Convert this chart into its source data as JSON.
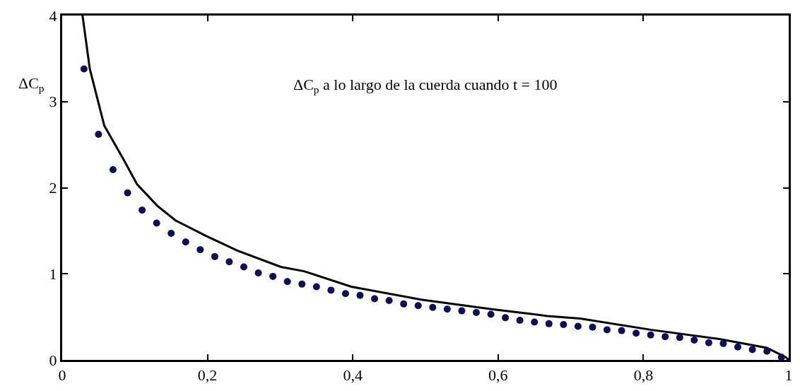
{
  "chart_data": {
    "type": "scatter",
    "ylabel": "ΔC$_{p}$",
    "annotations": [
      "ΔC$_{p}$ a lo largo de la cuerda cuando t = 100"
    ],
    "xlim": [
      0,
      1
    ],
    "xticks": [
      0,
      {
        "value": 0.2,
        "label": "0,2"
      },
      {
        "value": 0.4,
        "label": "0,4"
      },
      {
        "value": 0.6,
        "label": "0,6"
      },
      {
        "value": 0.8,
        "label": "0,8"
      },
      1
    ],
    "ylim": [
      0,
      4
    ],
    "yticks": [
      0,
      1,
      2,
      3,
      4
    ],
    "series": [
      {
        "type": "line",
        "color": "#000000",
        "line_style": "solid",
        "marker": "none",
        "x": [
          0.028,
          0.038,
          0.058,
          0.085,
          0.103,
          0.131,
          0.156,
          0.198,
          0.241,
          0.301,
          0.333,
          0.398,
          0.494,
          0.591,
          0.668,
          0.713,
          0.81,
          0.906,
          0.97,
          0.996,
          1.0
        ],
        "values": [
          4,
          3.38,
          2.72,
          2.32,
          2.04,
          1.79,
          1.62,
          1.44,
          1.27,
          1.08,
          1.03,
          0.85,
          0.7,
          0.59,
          0.51,
          0.48,
          0.35,
          0.24,
          0.14,
          0.03,
          0
        ]
      },
      {
        "color": "#0a0f5a",
        "marker": "circle",
        "x": [
          0.03,
          0.05,
          0.07,
          0.09,
          0.11,
          0.13,
          0.15,
          0.17,
          0.19,
          0.21,
          0.23,
          0.25,
          0.27,
          0.29,
          0.31,
          0.33,
          0.35,
          0.37,
          0.39,
          0.41,
          0.43,
          0.45,
          0.47,
          0.49,
          0.51,
          0.53,
          0.55,
          0.57,
          0.59,
          0.61,
          0.63,
          0.65,
          0.67,
          0.69,
          0.71,
          0.73,
          0.75,
          0.77,
          0.79,
          0.81,
          0.83,
          0.85,
          0.87,
          0.89,
          0.91,
          0.93,
          0.95,
          0.97,
          0.99
        ],
        "values": [
          3.38,
          2.62,
          2.21,
          1.94,
          1.74,
          1.59,
          1.47,
          1.37,
          1.28,
          1.2,
          1.14,
          1.08,
          1.01,
          0.97,
          0.91,
          0.88,
          0.85,
          0.81,
          0.77,
          0.75,
          0.71,
          0.69,
          0.65,
          0.63,
          0.61,
          0.59,
          0.57,
          0.55,
          0.53,
          0.49,
          0.46,
          0.44,
          0.42,
          0.41,
          0.39,
          0.38,
          0.35,
          0.34,
          0.31,
          0.29,
          0.27,
          0.26,
          0.23,
          0.2,
          0.19,
          0.15,
          0.12,
          0.1,
          0.03
        ]
      }
    ]
  }
}
